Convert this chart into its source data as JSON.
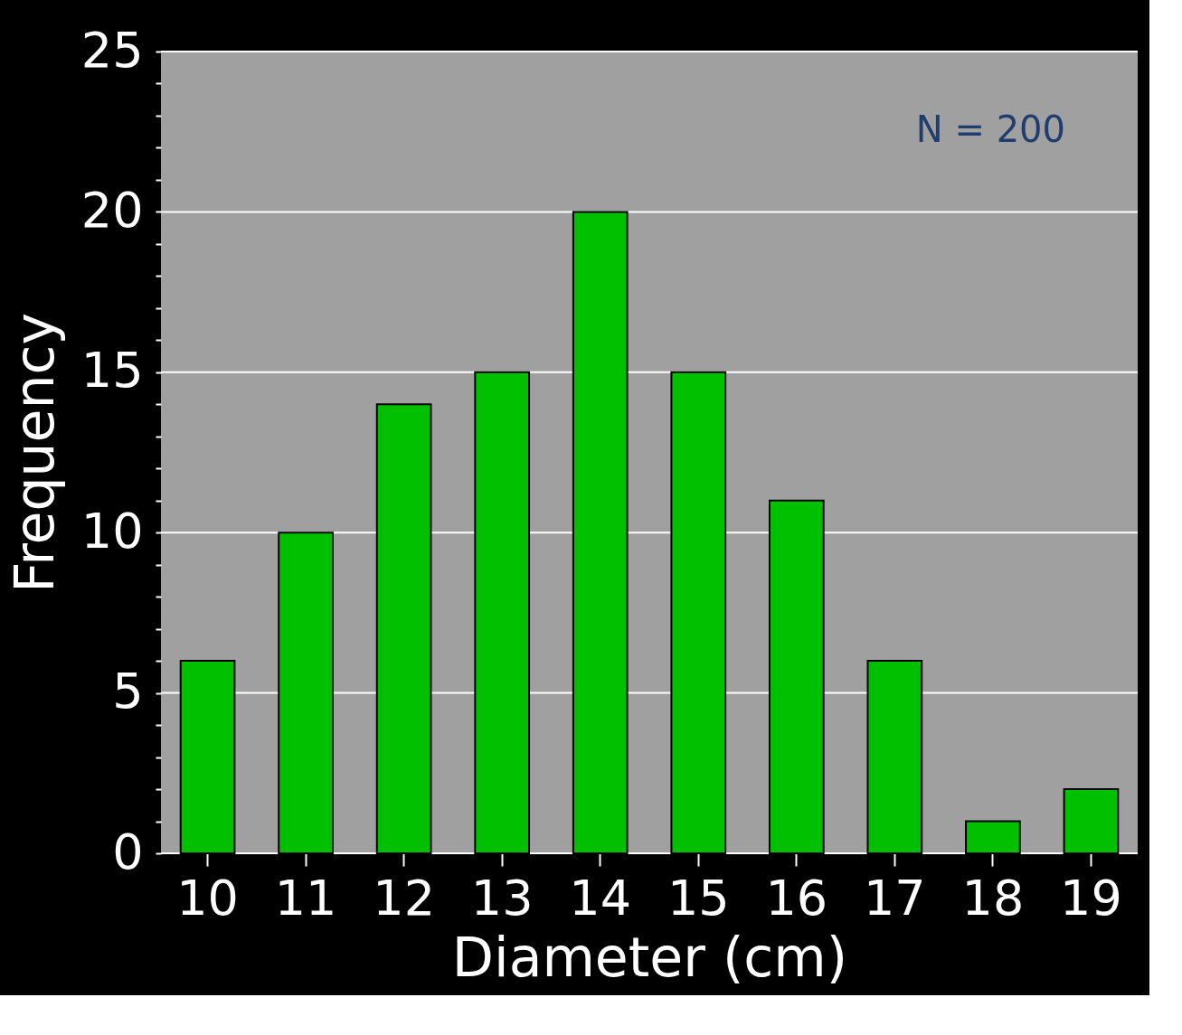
{
  "chart_data": {
    "type": "bar",
    "xlabel": "Diameter (cm)",
    "ylabel": "Frequency",
    "categories": [
      "10",
      "11",
      "12",
      "13",
      "14",
      "15",
      "16",
      "17",
      "18",
      "19"
    ],
    "values": [
      6,
      10,
      14,
      15,
      20,
      15,
      11,
      6,
      1,
      2
    ],
    "color": "#00c000",
    "ylim": [
      0,
      25
    ],
    "yticks": [
      0,
      {
        "value": 1,
        "label": null
      },
      {
        "value": 2,
        "label": null
      },
      {
        "value": 3,
        "label": null
      },
      {
        "value": 4,
        "label": null
      },
      5,
      {
        "value": 6,
        "label": null
      },
      {
        "value": 7,
        "label": null
      },
      {
        "value": 8,
        "label": null
      },
      {
        "value": 9,
        "label": null
      },
      10,
      {
        "value": 11,
        "label": null
      },
      {
        "value": 12,
        "label": null
      },
      {
        "value": 13,
        "label": null
      },
      {
        "value": 14,
        "label": null
      },
      15,
      {
        "value": 16,
        "label": null
      },
      {
        "value": 17,
        "label": null
      },
      {
        "value": 18,
        "label": null
      },
      {
        "value": 19,
        "label": null
      },
      20,
      {
        "value": 21,
        "label": null
      },
      {
        "value": 22,
        "label": null
      },
      {
        "value": 23,
        "label": null
      },
      {
        "value": 24,
        "label": null
      },
      25
    ],
    "grid": "y",
    "annotations": [
      "N = 200"
    ]
  }
}
